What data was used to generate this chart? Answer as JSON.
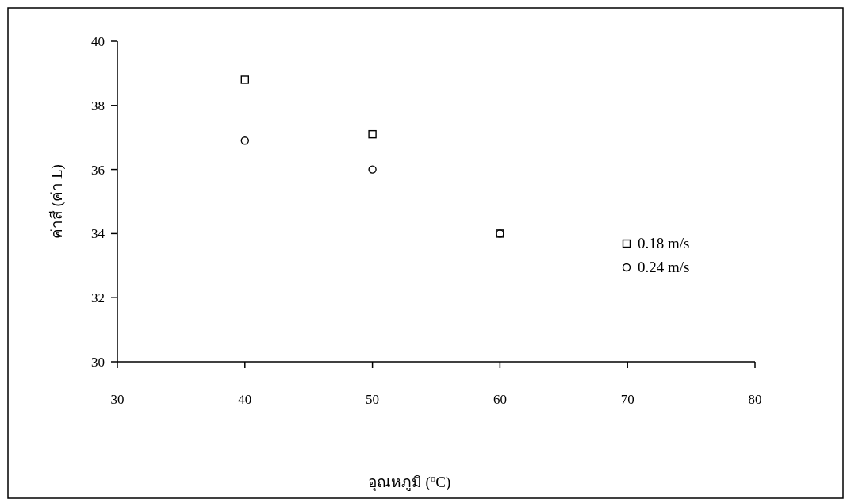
{
  "chart_data": {
    "type": "scatter",
    "xlabel": "อุณหภูมิ ($^{o}$C)",
    "ylabel": "ค่าสี (ค่า L)",
    "x": [
      40,
      50,
      60
    ],
    "series": [
      {
        "name": "0.18 m/s",
        "color": "#000000",
        "marker": "square",
        "values": [
          38.8,
          37.1,
          34.0
        ]
      },
      {
        "name": "0.24 m/s",
        "color": "#000000",
        "marker": "circle",
        "values": [
          36.9,
          36.0,
          34.0
        ]
      }
    ],
    "xlim": [
      30,
      80
    ],
    "xticks": [
      30,
      40,
      50,
      60,
      70,
      80
    ],
    "ylim": [
      30,
      40
    ],
    "yticks": [
      30,
      32,
      34,
      36,
      38,
      40
    ],
    "grid": false,
    "legend": "right"
  }
}
